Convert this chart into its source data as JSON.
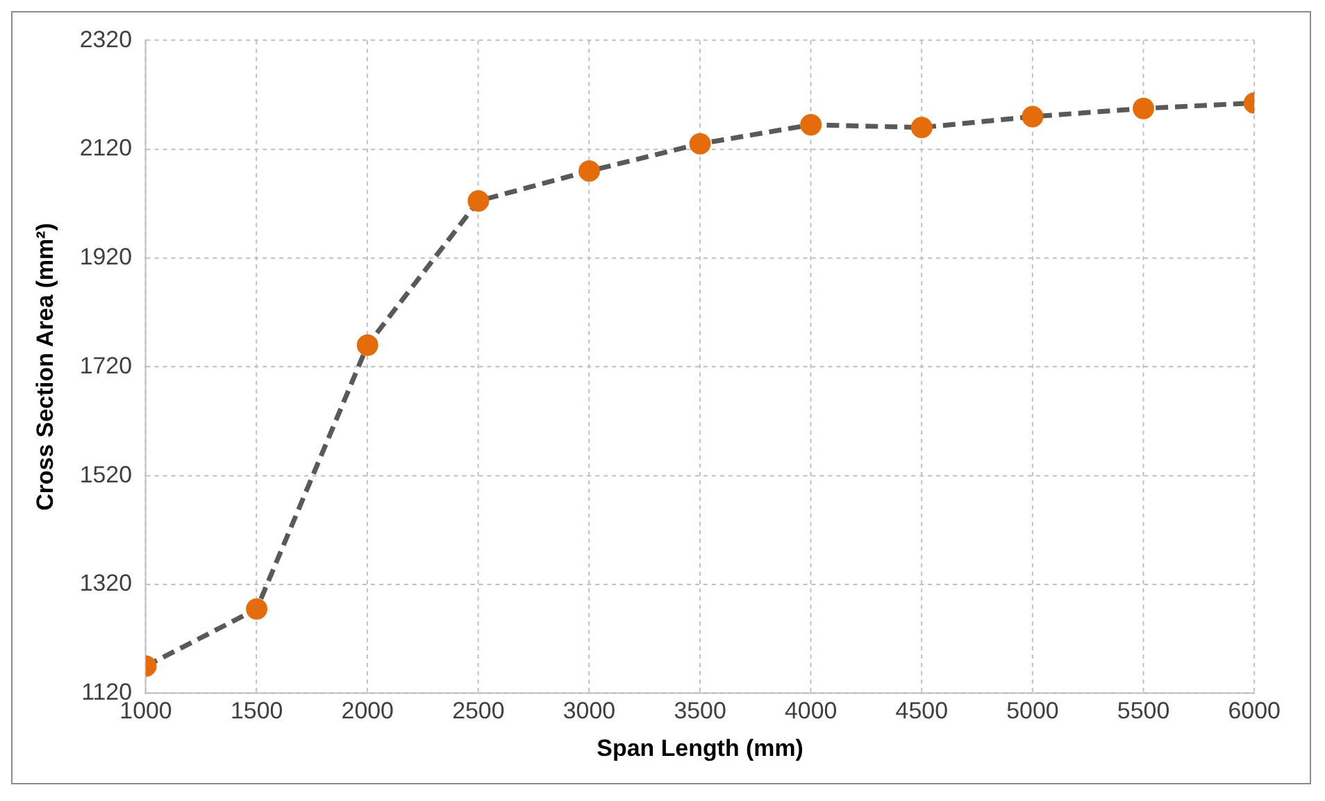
{
  "chart_data": {
    "type": "line",
    "xlabel": "Span Length (mm)",
    "ylabel": "Cross Section Area (mm²)",
    "x": [
      1000,
      1500,
      2000,
      2500,
      3000,
      3500,
      4000,
      4500,
      5000,
      5500,
      6000
    ],
    "series": [
      {
        "color": "#e46c0a",
        "values": [
          1170,
          1275,
          1760,
          2025,
          2080,
          2130,
          2165,
          2160,
          2180,
          2195,
          2205
        ]
      }
    ],
    "xlim": [
      1000,
      6000
    ],
    "xticks": [
      1000,
      1500,
      2000,
      2500,
      3000,
      3500,
      4000,
      4500,
      5000,
      5500,
      6000
    ],
    "ylim": [
      1120,
      2320
    ],
    "yticks": [
      1120,
      1320,
      1520,
      1720,
      1920,
      2120,
      2320
    ],
    "grid": true,
    "legend": false,
    "marker": "circle",
    "line_style": "dashed"
  }
}
